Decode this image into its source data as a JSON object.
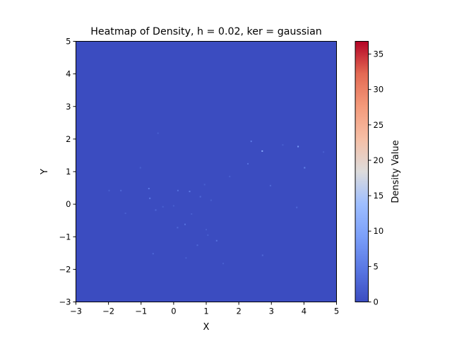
{
  "chart_data": {
    "type": "heatmap",
    "title": "Heatmap of Density, h = 0.02, ker = gaussian",
    "xlabel": "X",
    "ylabel": "Y",
    "xlim": [
      -3,
      5
    ],
    "ylim": [
      -3,
      5
    ],
    "x_ticks": [
      "−3",
      "−2",
      "−1",
      "0",
      "1",
      "2",
      "3",
      "4",
      "5"
    ],
    "y_ticks": [
      "−3",
      "−2",
      "−1",
      "0",
      "1",
      "2",
      "3",
      "4",
      "5"
    ],
    "colorbar": {
      "label": "Density Value",
      "range": [
        0,
        36.8
      ],
      "ticks": [
        "0",
        "5",
        "10",
        "15",
        "20",
        "25",
        "30",
        "35"
      ],
      "tick_values": [
        0,
        5,
        10,
        15,
        20,
        25,
        30,
        35
      ],
      "colormap": "coolwarm"
    },
    "background_color": "#3b4cc0",
    "hot_spots": [
      {
        "x": 2.72,
        "y": 1.63,
        "v": 11
      },
      {
        "x": 3.82,
        "y": 1.77,
        "v": 9
      },
      {
        "x": 2.38,
        "y": 1.93,
        "v": 5
      },
      {
        "x": 2.28,
        "y": 1.24,
        "v": 4
      },
      {
        "x": 4.02,
        "y": 1.12,
        "v": 6
      },
      {
        "x": 2.97,
        "y": 0.57,
        "v": 3
      },
      {
        "x": 4.6,
        "y": 1.6,
        "v": 2
      },
      {
        "x": 3.35,
        "y": 1.82,
        "v": 2
      },
      {
        "x": 3.78,
        "y": -0.1,
        "v": 3
      },
      {
        "x": -0.76,
        "y": 0.48,
        "v": 5
      },
      {
        "x": -0.73,
        "y": 0.18,
        "v": 5
      },
      {
        "x": -1.62,
        "y": 0.42,
        "v": 3
      },
      {
        "x": -1.98,
        "y": 0.42,
        "v": 2
      },
      {
        "x": 0.49,
        "y": 0.39,
        "v": 5
      },
      {
        "x": 0.13,
        "y": 0.42,
        "v": 4
      },
      {
        "x": 0.82,
        "y": 0.23,
        "v": 3
      },
      {
        "x": 1.15,
        "y": 0.12,
        "v": 2
      },
      {
        "x": 0.95,
        "y": 0.6,
        "v": 2
      },
      {
        "x": 0.0,
        "y": -0.05,
        "v": 2
      },
      {
        "x": -0.55,
        "y": -0.18,
        "v": 3
      },
      {
        "x": -0.33,
        "y": -0.08,
        "v": 2
      },
      {
        "x": -1.48,
        "y": -0.28,
        "v": 2
      },
      {
        "x": 0.12,
        "y": -0.72,
        "v": 3
      },
      {
        "x": 0.35,
        "y": -0.62,
        "v": 4
      },
      {
        "x": 1.0,
        "y": -0.78,
        "v": 2
      },
      {
        "x": 1.05,
        "y": -0.95,
        "v": 2
      },
      {
        "x": 1.32,
        "y": -1.12,
        "v": 4
      },
      {
        "x": 0.73,
        "y": -1.26,
        "v": 3
      },
      {
        "x": -0.63,
        "y": -1.52,
        "v": 3
      },
      {
        "x": 0.38,
        "y": -1.65,
        "v": 2
      },
      {
        "x": 1.52,
        "y": -1.82,
        "v": 2
      },
      {
        "x": 2.73,
        "y": -1.57,
        "v": 3
      },
      {
        "x": -0.48,
        "y": 2.18,
        "v": 2
      },
      {
        "x": 0.55,
        "y": -0.3,
        "v": 2
      },
      {
        "x": 1.72,
        "y": 0.85,
        "v": 2
      },
      {
        "x": -1.02,
        "y": 1.12,
        "v": 2
      }
    ]
  }
}
